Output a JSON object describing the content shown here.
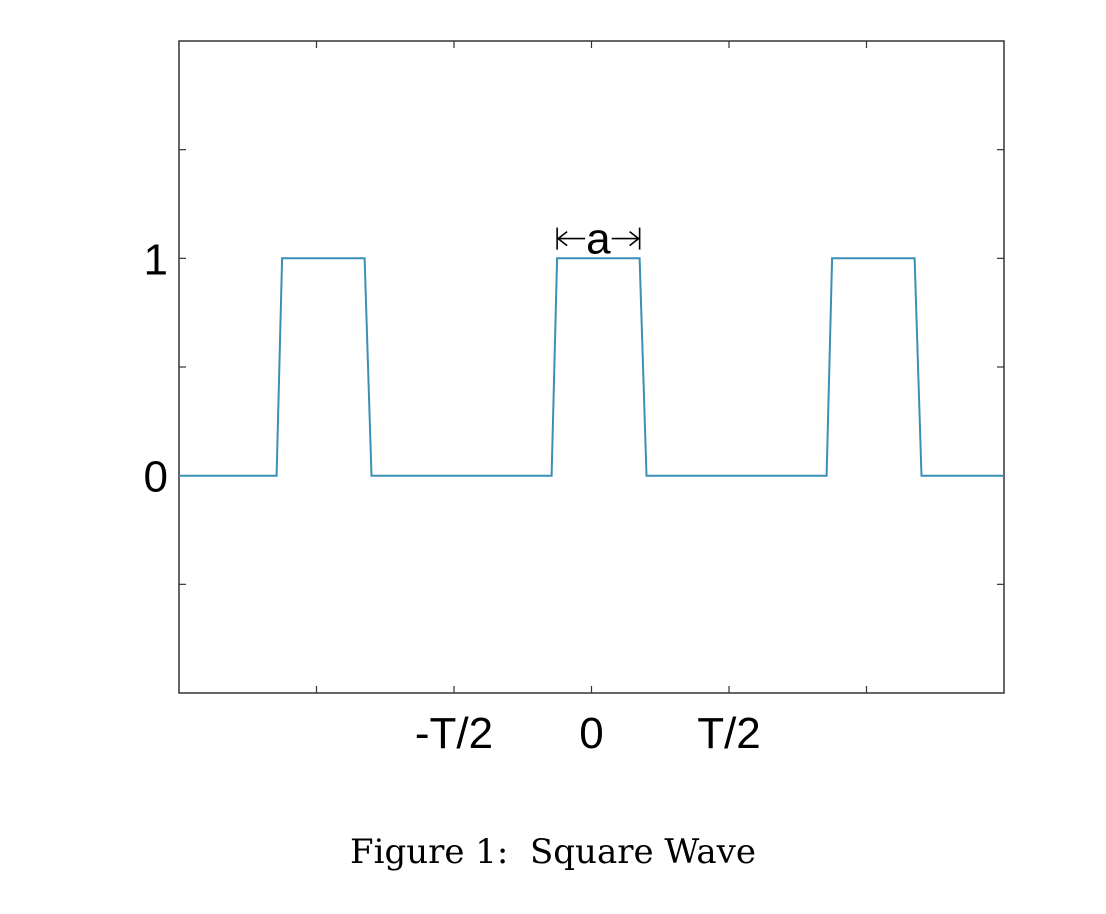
{
  "chart_data": {
    "type": "line",
    "line_color": "#3a8fb7",
    "x": [
      -3.0,
      -2.29,
      -2.25,
      -1.65,
      -1.6,
      -0.29,
      -0.25,
      0.35,
      0.4,
      1.71,
      1.75,
      2.35,
      2.4,
      3.0
    ],
    "y": [
      0,
      0,
      1,
      1,
      0,
      0,
      1,
      1,
      0,
      0,
      1,
      1,
      0,
      0
    ],
    "xlim": [
      -3.0,
      3.0
    ],
    "ylim": [
      -1.0,
      2.0
    ],
    "grid": false,
    "x_ticks": [
      -2,
      -1,
      0,
      1,
      2
    ],
    "y_ticks": [
      -0.5,
      0,
      0.5,
      1,
      1.5
    ],
    "x_tick_labels": [
      {
        "value": -1,
        "label": "-T/2"
      },
      {
        "value": 0,
        "label": "0"
      },
      {
        "value": 1,
        "label": "T/2"
      }
    ],
    "y_tick_labels": [
      {
        "value": 0,
        "label": "0"
      },
      {
        "value": 1,
        "label": "1"
      }
    ],
    "annotation": {
      "label": "a",
      "x_start": -0.25,
      "x_end": 0.35,
      "y": 1.1
    }
  },
  "caption": "Figure 1:  Square Wave"
}
